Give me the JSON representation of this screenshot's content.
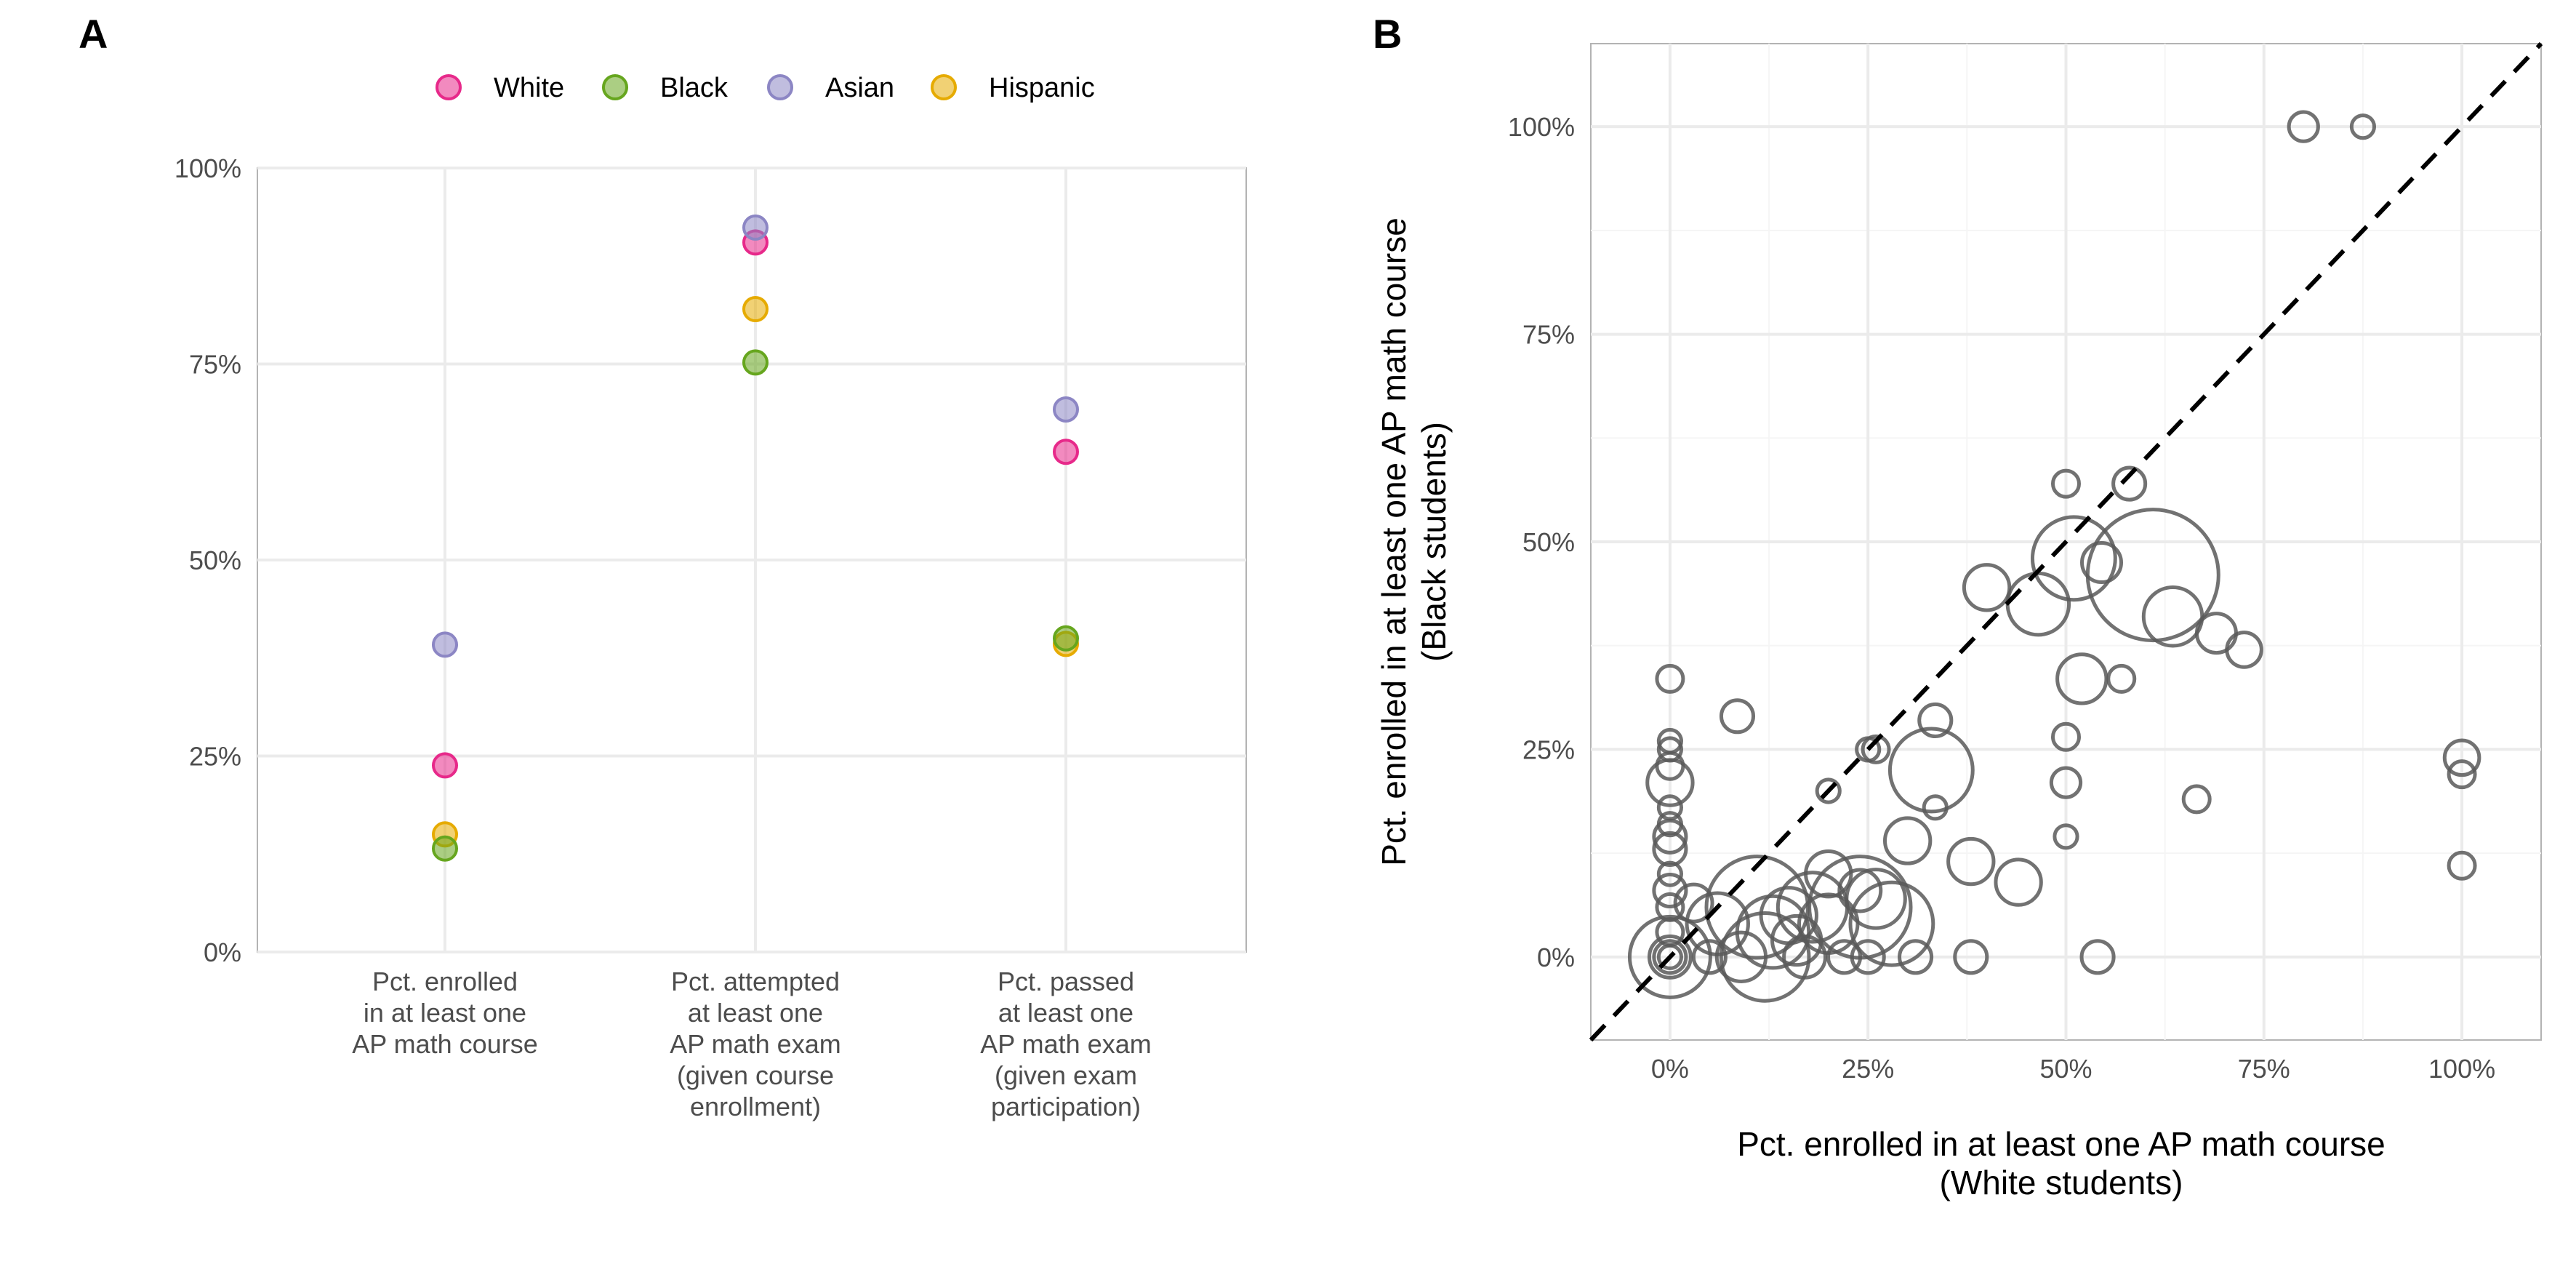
{
  "chart_data": [
    {
      "panel": "A",
      "type": "scatter",
      "legend": {
        "position": "top",
        "entries": [
          {
            "label": "White",
            "color": "#e7298a"
          },
          {
            "label": "Black",
            "color": "#66a61e"
          },
          {
            "label": "Asian",
            "color": "#8c86c4"
          },
          {
            "label": "Hispanic",
            "color": "#e6ab02"
          }
        ]
      },
      "categories": [
        [
          "Pct. enrolled",
          "in at least one",
          "AP math course"
        ],
        [
          "Pct. attempted",
          "at least one",
          "AP math exam",
          "(given course",
          "enrollment)"
        ],
        [
          "Pct. passed",
          "at least one",
          "AP math exam",
          "(given exam",
          "participation)"
        ]
      ],
      "series": [
        {
          "name": "White",
          "values": [
            0.238,
            0.905,
            0.638
          ]
        },
        {
          "name": "Black",
          "values": [
            0.132,
            0.752,
            0.4
          ]
        },
        {
          "name": "Asian",
          "values": [
            0.392,
            0.924,
            0.692
          ]
        },
        {
          "name": "Hispanic",
          "values": [
            0.15,
            0.82,
            0.393
          ]
        }
      ],
      "ylim": [
        0,
        1
      ],
      "yticks": [
        0,
        0.25,
        0.5,
        0.75,
        1
      ],
      "ytick_labels": [
        "0%",
        "25%",
        "50%",
        "75%",
        "100%"
      ],
      "xlabel": "",
      "ylabel": "",
      "grid": true
    },
    {
      "panel": "B",
      "type": "scatter",
      "xlabel": [
        "Pct. enrolled in at least one AP math course",
        "(White students)"
      ],
      "ylabel": [
        "Pct. enrolled in at least one AP math course",
        "(Black students)"
      ],
      "xlim": [
        -0.1,
        1.1
      ],
      "ylim": [
        -0.1,
        1.1
      ],
      "xticks": [
        0,
        0.25,
        0.5,
        0.75,
        1
      ],
      "xtick_labels": [
        "0%",
        "25%",
        "50%",
        "75%",
        "100%"
      ],
      "yticks": [
        0,
        0.25,
        0.5,
        0.75,
        1
      ],
      "ytick_labels": [
        "0%",
        "25%",
        "50%",
        "75%",
        "100%"
      ],
      "reference_line": "y = x (dashed)",
      "grid": true,
      "point_color": "#595959",
      "size_note": "bubble size proportional to a school-level count (relative units)",
      "points": [
        {
          "x": 0.0,
          "y": 0.0,
          "s": 3
        },
        {
          "x": 0.0,
          "y": 0.0,
          "s": 6
        },
        {
          "x": 0.0,
          "y": 0.0,
          "s": 10
        },
        {
          "x": 0.0,
          "y": 0.03,
          "s": 4
        },
        {
          "x": 0.0,
          "y": 0.06,
          "s": 4
        },
        {
          "x": 0.0,
          "y": 0.08,
          "s": 6
        },
        {
          "x": 0.0,
          "y": 0.1,
          "s": 3
        },
        {
          "x": 0.0,
          "y": 0.13,
          "s": 6
        },
        {
          "x": 0.0,
          "y": 0.145,
          "s": 6
        },
        {
          "x": 0.0,
          "y": 0.16,
          "s": 3
        },
        {
          "x": 0.0,
          "y": 0.18,
          "s": 3
        },
        {
          "x": 0.0,
          "y": 0.21,
          "s": 12
        },
        {
          "x": 0.0,
          "y": 0.23,
          "s": 4
        },
        {
          "x": 0.0,
          "y": 0.25,
          "s": 3
        },
        {
          "x": 0.0,
          "y": 0.26,
          "s": 3
        },
        {
          "x": 0.0,
          "y": 0.335,
          "s": 4
        },
        {
          "x": 0.0,
          "y": 0.0,
          "s": 38
        },
        {
          "x": 0.03,
          "y": 0.065,
          "s": 8
        },
        {
          "x": 0.05,
          "y": 0.0,
          "s": 6
        },
        {
          "x": 0.06,
          "y": 0.04,
          "s": 22
        },
        {
          "x": 0.085,
          "y": 0.29,
          "s": 6
        },
        {
          "x": 0.09,
          "y": 0.0,
          "s": 14
        },
        {
          "x": 0.11,
          "y": 0.06,
          "s": 60
        },
        {
          "x": 0.12,
          "y": 0.0,
          "s": 45
        },
        {
          "x": 0.13,
          "y": 0.03,
          "s": 30
        },
        {
          "x": 0.15,
          "y": 0.05,
          "s": 18
        },
        {
          "x": 0.16,
          "y": 0.02,
          "s": 14
        },
        {
          "x": 0.17,
          "y": 0.0,
          "s": 10
        },
        {
          "x": 0.18,
          "y": 0.06,
          "s": 28
        },
        {
          "x": 0.2,
          "y": 0.04,
          "s": 20
        },
        {
          "x": 0.2,
          "y": 0.1,
          "s": 12
        },
        {
          "x": 0.2,
          "y": 0.2,
          "s": 3
        },
        {
          "x": 0.22,
          "y": 0.0,
          "s": 6
        },
        {
          "x": 0.24,
          "y": 0.08,
          "s": 10
        },
        {
          "x": 0.25,
          "y": 0.0,
          "s": 6
        },
        {
          "x": 0.25,
          "y": 0.25,
          "s": 3
        },
        {
          "x": 0.26,
          "y": 0.25,
          "s": 4
        },
        {
          "x": 0.24,
          "y": 0.06,
          "s": 60
        },
        {
          "x": 0.26,
          "y": 0.07,
          "s": 20
        },
        {
          "x": 0.28,
          "y": 0.04,
          "s": 40
        },
        {
          "x": 0.3,
          "y": 0.14,
          "s": 12
        },
        {
          "x": 0.31,
          "y": 0.0,
          "s": 6
        },
        {
          "x": 0.335,
          "y": 0.285,
          "s": 6
        },
        {
          "x": 0.335,
          "y": 0.18,
          "s": 3
        },
        {
          "x": 0.33,
          "y": 0.225,
          "s": 40
        },
        {
          "x": 0.38,
          "y": 0.115,
          "s": 12
        },
        {
          "x": 0.38,
          "y": 0.0,
          "s": 6
        },
        {
          "x": 0.4,
          "y": 0.445,
          "s": 12
        },
        {
          "x": 0.44,
          "y": 0.09,
          "s": 12
        },
        {
          "x": 0.465,
          "y": 0.425,
          "s": 22
        },
        {
          "x": 0.5,
          "y": 0.57,
          "s": 4
        },
        {
          "x": 0.5,
          "y": 0.265,
          "s": 4
        },
        {
          "x": 0.5,
          "y": 0.21,
          "s": 5
        },
        {
          "x": 0.5,
          "y": 0.145,
          "s": 3
        },
        {
          "x": 0.51,
          "y": 0.48,
          "s": 40
        },
        {
          "x": 0.52,
          "y": 0.335,
          "s": 14
        },
        {
          "x": 0.54,
          "y": 0.0,
          "s": 6
        },
        {
          "x": 0.545,
          "y": 0.475,
          "s": 9
        },
        {
          "x": 0.57,
          "y": 0.335,
          "s": 4
        },
        {
          "x": 0.58,
          "y": 0.57,
          "s": 6
        },
        {
          "x": 0.61,
          "y": 0.46,
          "s": 100
        },
        {
          "x": 0.635,
          "y": 0.41,
          "s": 20
        },
        {
          "x": 0.665,
          "y": 0.19,
          "s": 4
        },
        {
          "x": 0.69,
          "y": 0.39,
          "s": 9
        },
        {
          "x": 0.725,
          "y": 0.37,
          "s": 7
        },
        {
          "x": 0.8,
          "y": 1.0,
          "s": 5
        },
        {
          "x": 0.875,
          "y": 1.0,
          "s": 3
        },
        {
          "x": 1.0,
          "y": 0.24,
          "s": 7
        },
        {
          "x": 1.0,
          "y": 0.22,
          "s": 4
        },
        {
          "x": 1.0,
          "y": 0.11,
          "s": 4
        }
      ]
    }
  ]
}
